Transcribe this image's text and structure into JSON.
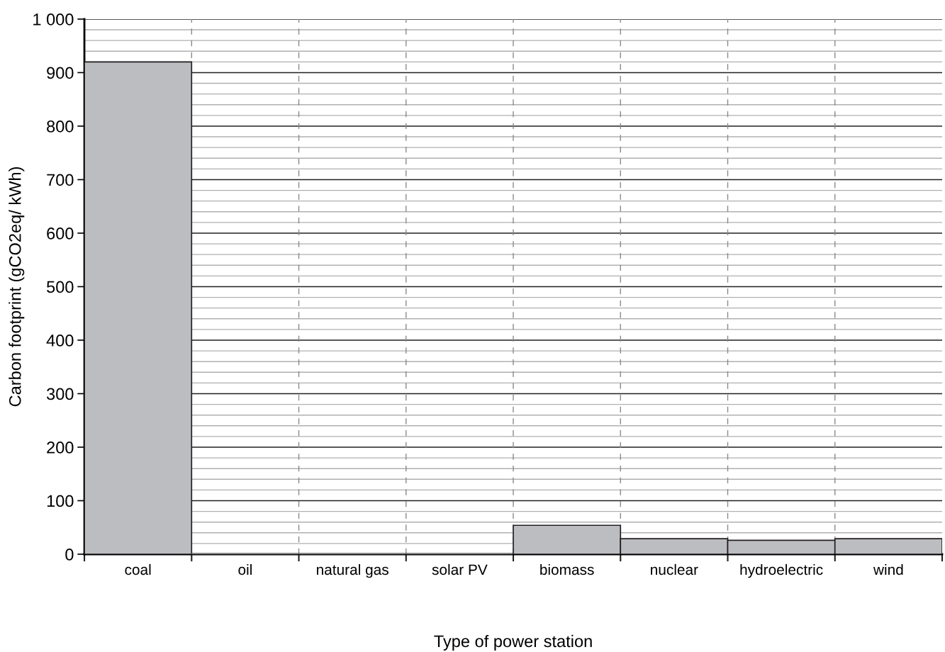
{
  "chart_data": {
    "type": "bar",
    "xlabel": "Type of power station",
    "ylabel": "Carbon footprint (gCO2eq/ kWh)",
    "categories": [
      "coal",
      "oil",
      "natural gas",
      "solar PV",
      "biomass",
      "nuclear",
      "hydroelectric",
      "wind"
    ],
    "values": [
      920,
      0,
      0,
      0,
      54,
      29,
      26,
      29
    ],
    "color": "#bcbdc1",
    "ylim": [
      0,
      1000
    ],
    "yticks": [
      0,
      {
        "value": 20,
        "label": null
      },
      {
        "value": 40,
        "label": null
      },
      {
        "value": 60,
        "label": null
      },
      {
        "value": 80,
        "label": null
      },
      100,
      {
        "value": 120,
        "label": null
      },
      {
        "value": 140,
        "label": null
      },
      {
        "value": 160,
        "label": null
      },
      {
        "value": 180,
        "label": null
      },
      200,
      {
        "value": 220,
        "label": null
      },
      {
        "value": 240,
        "label": null
      },
      {
        "value": 260,
        "label": null
      },
      {
        "value": 280,
        "label": null
      },
      300,
      {
        "value": 320,
        "label": null
      },
      {
        "value": 340,
        "label": null
      },
      {
        "value": 360,
        "label": null
      },
      {
        "value": 380,
        "label": null
      },
      400,
      {
        "value": 420,
        "label": null
      },
      {
        "value": 440,
        "label": null
      },
      {
        "value": 460,
        "label": null
      },
      {
        "value": 480,
        "label": null
      },
      500,
      {
        "value": 520,
        "label": null
      },
      {
        "value": 540,
        "label": null
      },
      {
        "value": 560,
        "label": null
      },
      {
        "value": 580,
        "label": null
      },
      600,
      {
        "value": 620,
        "label": null
      },
      {
        "value": 640,
        "label": null
      },
      {
        "value": 660,
        "label": null
      },
      {
        "value": 680,
        "label": null
      },
      700,
      {
        "value": 720,
        "label": null
      },
      {
        "value": 740,
        "label": null
      },
      {
        "value": 760,
        "label": null
      },
      {
        "value": 780,
        "label": null
      },
      800,
      {
        "value": 820,
        "label": null
      },
      {
        "value": 840,
        "label": null
      },
      {
        "value": 860,
        "label": null
      },
      {
        "value": 880,
        "label": null
      },
      900,
      {
        "value": 920,
        "label": null
      },
      {
        "value": 940,
        "label": null
      },
      {
        "value": 960,
        "label": null
      },
      {
        "value": 980,
        "label": null
      },
      {
        "value": 1000,
        "label": "1 000"
      }
    ],
    "grid": true
  }
}
